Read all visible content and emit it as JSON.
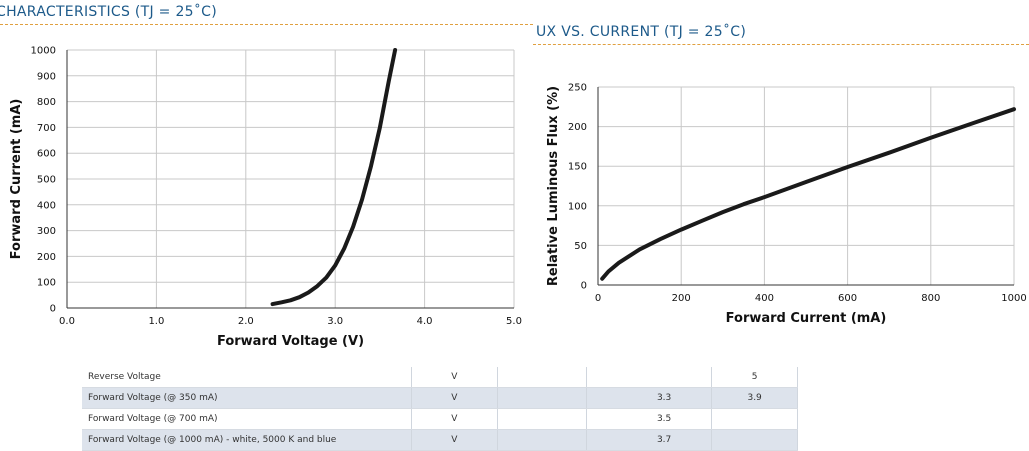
{
  "page": {
    "left_title": "CHARACTERISTICS (TJ = 25˚C)",
    "right_title": "UX VS. CURRENT (TJ = 25˚C)"
  },
  "chart_data": [
    {
      "type": "line",
      "title": "",
      "xlabel": "Forward Voltage (V)",
      "ylabel": "Forward Current (mA)",
      "xlim": [
        0,
        5
      ],
      "ylim": [
        0,
        1000
      ],
      "x_ticks": [
        "0.0",
        "1.0",
        "2.0",
        "3.0",
        "4.0",
        "5.0"
      ],
      "y_ticks": [
        "0",
        "100",
        "200",
        "300",
        "400",
        "500",
        "600",
        "700",
        "800",
        "900",
        "1000"
      ],
      "grid": true,
      "series": [
        {
          "x": [
            2.3,
            2.4,
            2.5,
            2.6,
            2.7,
            2.8,
            2.9,
            3.0,
            3.1,
            3.2,
            3.3,
            3.4,
            3.5,
            3.6,
            3.67
          ],
          "y": [
            15,
            22,
            30,
            42,
            60,
            85,
            118,
            165,
            230,
            315,
            420,
            550,
            700,
            880,
            1000
          ]
        }
      ]
    },
    {
      "type": "line",
      "title": "",
      "xlabel": "Forward Current (mA)",
      "ylabel": "Relative Luminous Flux (%)",
      "xlim": [
        0,
        1000
      ],
      "ylim": [
        0,
        250
      ],
      "x_ticks": [
        "0",
        "200",
        "400",
        "600",
        "800",
        "1000"
      ],
      "y_ticks": [
        "0",
        "50",
        "100",
        "150",
        "200",
        "250"
      ],
      "grid": true,
      "series": [
        {
          "x": [
            10,
            25,
            50,
            100,
            150,
            200,
            250,
            300,
            350,
            400,
            500,
            600,
            700,
            800,
            900,
            1000
          ],
          "y": [
            8,
            17,
            28,
            45,
            58,
            70,
            81,
            92,
            102,
            111,
            130,
            149,
            167,
            186,
            204,
            222
          ]
        }
      ]
    }
  ],
  "table": {
    "rows": [
      [
        "Reverse Voltage",
        "V",
        "",
        "",
        "5"
      ],
      [
        "Forward Voltage (@ 350 mA)",
        "V",
        "",
        "3.3",
        "3.9"
      ],
      [
        "Forward Voltage (@ 700 mA)",
        "V",
        "",
        "3.5",
        ""
      ],
      [
        "Forward Voltage (@ 1000 mA) - white, 5000 K and blue",
        "V",
        "",
        "3.7",
        ""
      ]
    ]
  }
}
